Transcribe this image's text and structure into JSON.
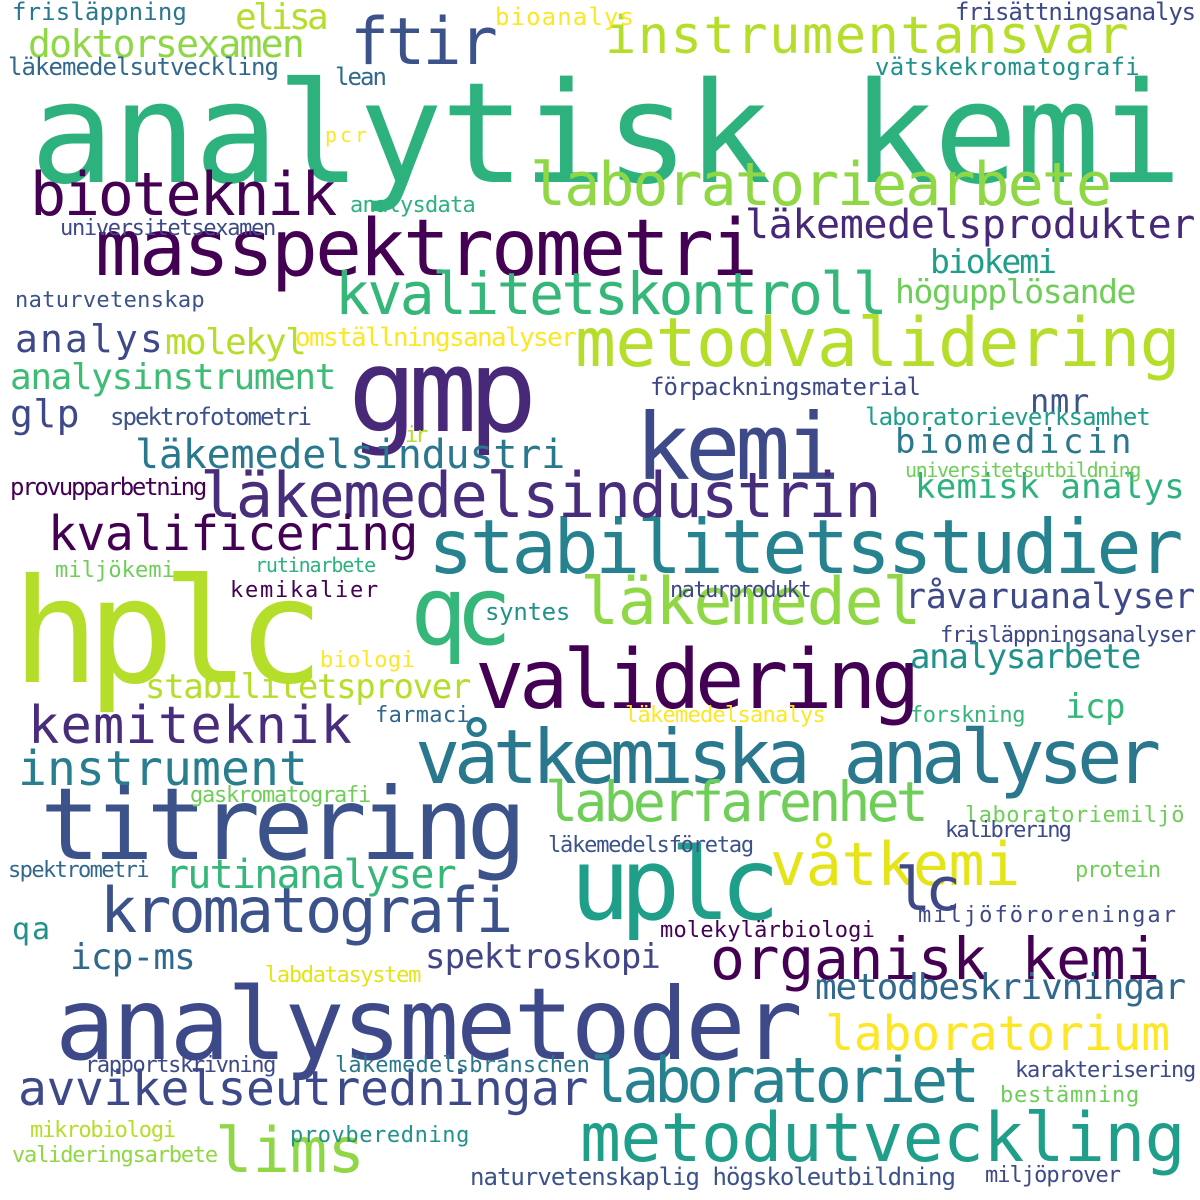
{
  "colors": {
    "background": "#ffffff",
    "palette": [
      "#440154",
      "#482878",
      "#3e4989",
      "#31688e",
      "#26828e",
      "#1f9e89",
      "#35b779",
      "#6ece58",
      "#b5de2b",
      "#fde725"
    ]
  },
  "words": [
    {
      "text": "analytisk kemi",
      "color": "#2db27d"
    },
    {
      "text": "hplc",
      "color": "#b5de2b"
    },
    {
      "text": "analysmetoder",
      "color": "#3e4989"
    },
    {
      "text": "gmp",
      "color": "#482878"
    },
    {
      "text": "titrering",
      "color": "#3b528b"
    },
    {
      "text": "masspektrometri",
      "color": "#440154"
    },
    {
      "text": "kemi",
      "color": "#3e4989"
    },
    {
      "text": "stabilitetsstudier",
      "color": "#26828e"
    },
    {
      "text": "uplc",
      "color": "#1f9e89"
    },
    {
      "text": "qc",
      "color": "#35b779"
    },
    {
      "text": "validering",
      "color": "#440154"
    },
    {
      "text": "våtkemiska analyser",
      "color": "#2a788e"
    },
    {
      "text": "metodvalidering",
      "color": "#b5de2b"
    },
    {
      "text": "läkemedelsindustrin",
      "color": "#472d7b"
    },
    {
      "text": "metodutveckling",
      "color": "#1f9e89"
    },
    {
      "text": "laboratoriearbete",
      "color": "#8fd744"
    },
    {
      "text": "kvalitetskontroll",
      "color": "#35b779"
    },
    {
      "text": "organisk kemi",
      "color": "#440154"
    },
    {
      "text": "kromatografi",
      "color": "#3b528b"
    },
    {
      "text": "läkemedel",
      "color": "#8fd744"
    },
    {
      "text": "bioteknik",
      "color": "#440154"
    },
    {
      "text": "laboratoriet",
      "color": "#26828e"
    },
    {
      "text": "avvikelseutredningar",
      "color": "#3e4989"
    },
    {
      "text": "ftir",
      "color": "#3b528b"
    },
    {
      "text": "instrumentansvar",
      "color": "#b5de2b"
    },
    {
      "text": "kemiteknik",
      "color": "#472d7b"
    },
    {
      "text": "laberfarenhet",
      "color": "#6ece58"
    },
    {
      "text": "våtkemi",
      "color": "#e5e419"
    },
    {
      "text": "lims",
      "color": "#8fd744"
    },
    {
      "text": "instrument",
      "color": "#287d8e"
    },
    {
      "text": "kvalificering",
      "color": "#440154"
    },
    {
      "text": "lc",
      "color": "#3e4989"
    },
    {
      "text": "laboratorium",
      "color": "#fde725"
    },
    {
      "text": "läkemedelsprodukter",
      "color": "#482878"
    },
    {
      "text": "läkemedelsindustri",
      "color": "#2a788e"
    },
    {
      "text": "rutinanalyser",
      "color": "#35b779"
    },
    {
      "text": "doktorsexamen",
      "color": "#8fd744"
    },
    {
      "text": "metodbeskrivningar",
      "color": "#31688e"
    },
    {
      "text": "analysinstrument",
      "color": "#3dbc74"
    },
    {
      "text": "stabilitetsprover",
      "color": "#b5de2b"
    },
    {
      "text": "spektroskopi",
      "color": "#414487"
    },
    {
      "text": "råvaruanalyser",
      "color": "#3e4989"
    },
    {
      "text": "biomedicin",
      "color": "#2a788e"
    },
    {
      "text": "kemisk analys",
      "color": "#2db27d"
    },
    {
      "text": "analysarbete",
      "color": "#21918c"
    },
    {
      "text": "högupplösande",
      "color": "#6ece58"
    },
    {
      "text": "biokemi",
      "color": "#1f9e89"
    },
    {
      "text": "analys",
      "color": "#3e4989"
    },
    {
      "text": "molekyl",
      "color": "#b5de2b"
    },
    {
      "text": "icp-ms",
      "color": "#31688e"
    },
    {
      "text": "glp",
      "color": "#3e4989"
    },
    {
      "text": "elisa",
      "color": "#b5de2b"
    },
    {
      "text": "icp",
      "color": "#35b779"
    },
    {
      "text": "nmr",
      "color": "#3b528b"
    },
    {
      "text": "qa",
      "color": "#21918c"
    },
    {
      "text": "omställningsanalyser",
      "color": "#fde725"
    },
    {
      "text": "förpackningsmaterial",
      "color": "#3e4989"
    },
    {
      "text": "spektrofotometri",
      "color": "#3b528b"
    },
    {
      "text": "laboratorieverksamhet",
      "color": "#1f9e89"
    },
    {
      "text": "provupparbetning",
      "color": "#440154"
    },
    {
      "text": "universitetsutbildning",
      "color": "#6ece58"
    },
    {
      "text": "läkemedelsutveckling",
      "color": "#31688e"
    },
    {
      "text": "frisläppning",
      "color": "#2a788e"
    },
    {
      "text": "bioanalys",
      "color": "#fde725"
    },
    {
      "text": "frisättningsanalys",
      "color": "#3e4989"
    },
    {
      "text": "vätskekromatografi",
      "color": "#21918c"
    },
    {
      "text": "lean",
      "color": "#31688e"
    },
    {
      "text": "pcr",
      "color": "#fde725"
    },
    {
      "text": "analysdata",
      "color": "#2db27d"
    },
    {
      "text": "universitetsexamen",
      "color": "#3e4989"
    },
    {
      "text": "naturvetenskap",
      "color": "#3b528b"
    },
    {
      "text": "ir",
      "color": "#b5de2b"
    },
    {
      "text": "miljökemi",
      "color": "#6ece58"
    },
    {
      "text": "rutinarbete",
      "color": "#2db27d"
    },
    {
      "text": "kemikalier",
      "color": "#440154"
    },
    {
      "text": "naturprodukt",
      "color": "#3e4989"
    },
    {
      "text": "syntes",
      "color": "#21918c"
    },
    {
      "text": "frisläppningsanalyser",
      "color": "#3e4989"
    },
    {
      "text": "biologi",
      "color": "#fde725"
    },
    {
      "text": "farmaci",
      "color": "#31688e"
    },
    {
      "text": "läkemedelsanalys",
      "color": "#fde725"
    },
    {
      "text": "forskning",
      "color": "#35b779"
    },
    {
      "text": "gaskromatografi",
      "color": "#6ece58"
    },
    {
      "text": "laboratoriemiljö",
      "color": "#6ece58"
    },
    {
      "text": "kalibrering",
      "color": "#3e4989"
    },
    {
      "text": "läkemedelsföretag",
      "color": "#3b528b"
    },
    {
      "text": "spektrometri",
      "color": "#31688e"
    },
    {
      "text": "protein",
      "color": "#6ece58"
    },
    {
      "text": "miljöföroreningar",
      "color": "#3e4989"
    },
    {
      "text": "molekylärbiologi",
      "color": "#440154"
    },
    {
      "text": "labdatasystem",
      "color": "#e5e419"
    },
    {
      "text": "rapportskrivning",
      "color": "#3e4989"
    },
    {
      "text": "läkemedelsbranschen",
      "color": "#2a788e"
    },
    {
      "text": "karakterisering",
      "color": "#3e4989"
    },
    {
      "text": "bestämning",
      "color": "#6ece58"
    },
    {
      "text": "mikrobiologi",
      "color": "#b5de2b"
    },
    {
      "text": "provberedning",
      "color": "#21918c"
    },
    {
      "text": "valideringsarbete",
      "color": "#8fd744"
    },
    {
      "text": "naturvetenskaplig högskoleutbildning",
      "color": "#3b528b"
    },
    {
      "text": "miljöprover",
      "color": "#3e4989"
    }
  ]
}
